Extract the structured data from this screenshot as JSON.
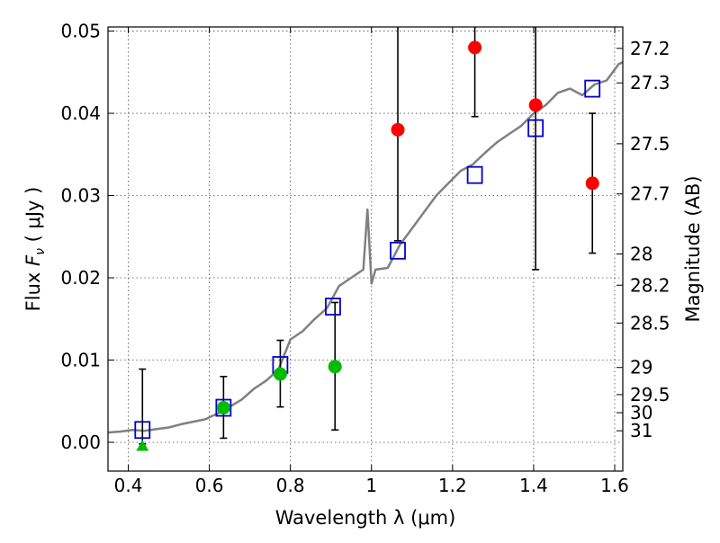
{
  "chart_data": {
    "type": "scatter",
    "xlabel": "Wavelength  λ (μm)",
    "ylabel": "Flux  F_ν  ( μJy )",
    "ylabel_parts": {
      "prefix": "Flux  ",
      "symbol": "F",
      "subscript": "ν",
      "unit": "  ( μJy )"
    },
    "y2label": "Magnitude (AB)",
    "xlim": [
      0.35,
      1.62
    ],
    "ylim": [
      -0.0035,
      0.0505
    ],
    "xticks": [
      0.4,
      0.6,
      0.8,
      1.0,
      1.2,
      1.4,
      1.6
    ],
    "xtick_labels": [
      "0.4",
      "0.6",
      "0.8",
      "1",
      "1.2",
      "1.4",
      "1.6"
    ],
    "yticks": [
      0.0,
      0.01,
      0.02,
      0.03,
      0.04,
      0.05
    ],
    "ytick_labels": [
      "0.00",
      "0.01",
      "0.02",
      "0.03",
      "0.04",
      "0.05"
    ],
    "y2ticks": [
      {
        "label": "27.2",
        "flux": 0.0479
      },
      {
        "label": "27.3",
        "flux": 0.0437
      },
      {
        "label": "27.5",
        "flux": 0.0363
      },
      {
        "label": "27.7",
        "flux": 0.0302
      },
      {
        "label": "28",
        "flux": 0.0229
      },
      {
        "label": "28.2",
        "flux": 0.0191
      },
      {
        "label": "28.5",
        "flux": 0.0145
      },
      {
        "label": "29",
        "flux": 0.0091
      },
      {
        "label": "29.5",
        "flux": 0.0058
      },
      {
        "label": "30",
        "flux": 0.0036
      },
      {
        "label": "31",
        "flux": 0.0014
      }
    ],
    "grid": true,
    "series": [
      {
        "kind": "spectrum_line",
        "color": "#808080",
        "x": [
          0.35,
          0.38,
          0.41,
          0.44,
          0.47,
          0.5,
          0.53,
          0.56,
          0.59,
          0.62,
          0.65,
          0.68,
          0.71,
          0.74,
          0.77,
          0.8,
          0.83,
          0.86,
          0.89,
          0.92,
          0.95,
          0.98,
          0.99,
          1.0,
          1.01,
          1.04,
          1.07,
          1.1,
          1.13,
          1.16,
          1.19,
          1.22,
          1.25,
          1.28,
          1.31,
          1.34,
          1.37,
          1.4,
          1.43,
          1.46,
          1.49,
          1.52,
          1.55,
          1.58,
          1.61,
          1.62
        ],
        "y": [
          0.0012,
          0.0013,
          0.0015,
          0.0014,
          0.0016,
          0.0018,
          0.0022,
          0.0025,
          0.0028,
          0.0035,
          0.0043,
          0.0052,
          0.0065,
          0.0075,
          0.0088,
          0.0125,
          0.0135,
          0.015,
          0.0163,
          0.019,
          0.02,
          0.021,
          0.0283,
          0.0193,
          0.021,
          0.0212,
          0.024,
          0.026,
          0.028,
          0.03,
          0.0315,
          0.033,
          0.0338,
          0.0352,
          0.0365,
          0.0375,
          0.0385,
          0.04,
          0.041,
          0.0425,
          0.043,
          0.0422,
          0.0435,
          0.044,
          0.046,
          0.0462
        ]
      },
      {
        "kind": "open_square",
        "color": "#0000cc",
        "points": [
          {
            "x": 0.435,
            "y": 0.0015
          },
          {
            "x": 0.635,
            "y": 0.0042
          },
          {
            "x": 0.775,
            "y": 0.0094
          },
          {
            "x": 0.905,
            "y": 0.0165
          },
          {
            "x": 1.065,
            "y": 0.0233
          },
          {
            "x": 1.255,
            "y": 0.0325
          },
          {
            "x": 1.405,
            "y": 0.0382
          },
          {
            "x": 1.545,
            "y": 0.043
          }
        ]
      },
      {
        "kind": "filled_circle_errorbar",
        "color": "#00bb00",
        "points": [
          {
            "x": 0.635,
            "y": 0.0042,
            "ylo": 0.0005,
            "yhi": 0.008
          },
          {
            "x": 0.775,
            "y": 0.0083,
            "ylo": 0.0043,
            "yhi": 0.0124
          },
          {
            "x": 0.91,
            "y": 0.0092,
            "ylo": 0.0015,
            "yhi": 0.017
          }
        ]
      },
      {
        "kind": "triangle_errorbar",
        "color": "#00bb00",
        "points": [
          {
            "x": 0.435,
            "y": -0.0005,
            "ylo": -0.0002,
            "yhi": 0.0089
          }
        ]
      },
      {
        "kind": "filled_circle_errorbar",
        "color": "#ff0000",
        "points": [
          {
            "x": 1.065,
            "y": 0.038,
            "ylo": 0.0245,
            "yhi": 0.0505
          },
          {
            "x": 1.255,
            "y": 0.048,
            "ylo": 0.0396,
            "yhi": 0.0505
          },
          {
            "x": 1.405,
            "y": 0.041,
            "ylo": 0.021,
            "yhi": 0.0505
          },
          {
            "x": 1.545,
            "y": 0.0315,
            "ylo": 0.023,
            "yhi": 0.04
          }
        ]
      }
    ]
  }
}
